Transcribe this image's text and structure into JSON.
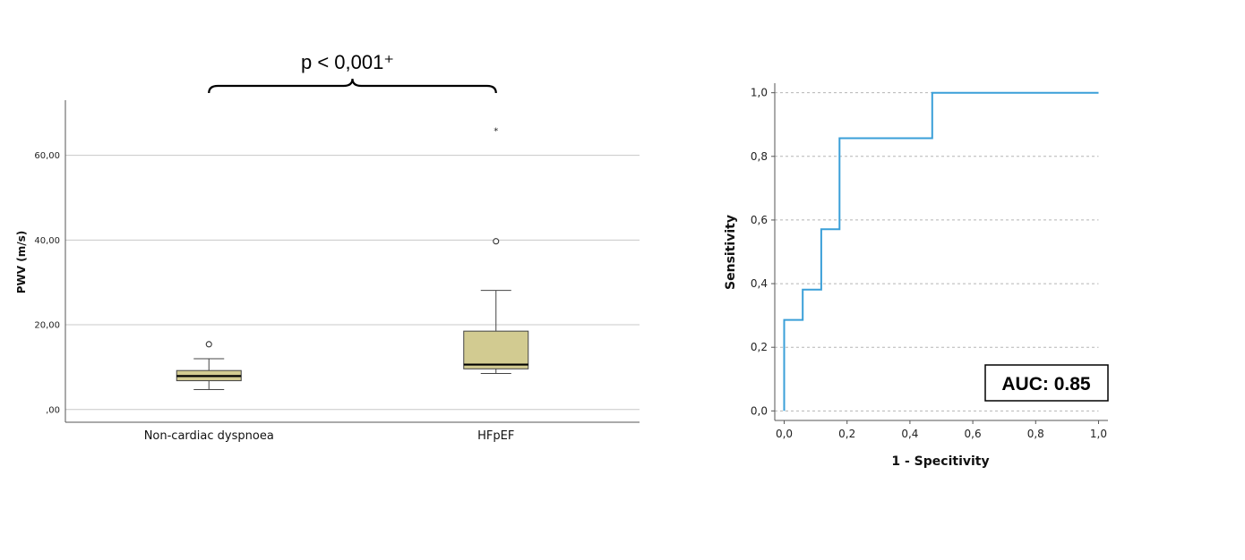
{
  "chart_data": [
    {
      "type": "box",
      "ylabel": "PWV (m/s)",
      "xlabel": "",
      "ylim": [
        -3,
        73
      ],
      "yticks": [
        0,
        20,
        40,
        60
      ],
      "ytick_labels": [
        ",00",
        "20,00",
        "40,00",
        "60,00"
      ],
      "grid": true,
      "annotation": "p < 0,001⁺",
      "box_color": "#d2cb91",
      "groups": [
        {
          "name": "Non-cardiac dyspnoea",
          "whisker_low": 4.7,
          "q1": 6.8,
          "median": 7.9,
          "q3": 9.2,
          "whisker_high": 12.0,
          "outliers": [
            15.4
          ],
          "extremes": []
        },
        {
          "name": "HFpEF",
          "whisker_low": 8.5,
          "q1": 9.6,
          "median": 10.6,
          "q3": 18.5,
          "whisker_high": 28.1,
          "outliers": [
            39.7
          ],
          "extremes": [
            66.4
          ]
        }
      ]
    },
    {
      "type": "line",
      "xlabel": "1 - Specitivity",
      "ylabel": "Sensitivity",
      "xlim": [
        -0.03,
        1.03
      ],
      "ylim": [
        -0.03,
        1.03
      ],
      "ticks": [
        0,
        0.2,
        0.4,
        0.6,
        0.8,
        1.0
      ],
      "xtick_labels": [
        "0,0",
        "0,2",
        "0,4",
        "0,6",
        "0,8",
        "1,0"
      ],
      "ytick_labels": [
        "0,0",
        "0,2",
        "0,4",
        "0,6",
        "0,8",
        "1,0"
      ],
      "grid": "horizontal dashed",
      "line_color": "#3a9fd8",
      "auc_label": "AUC: 0.85",
      "points": [
        [
          0.0,
          0.0
        ],
        [
          0.0,
          0.286
        ],
        [
          0.059,
          0.286
        ],
        [
          0.059,
          0.381
        ],
        [
          0.118,
          0.381
        ],
        [
          0.118,
          0.571
        ],
        [
          0.176,
          0.571
        ],
        [
          0.176,
          0.857
        ],
        [
          0.471,
          0.857
        ],
        [
          0.471,
          1.0
        ],
        [
          1.0,
          1.0
        ]
      ]
    }
  ]
}
